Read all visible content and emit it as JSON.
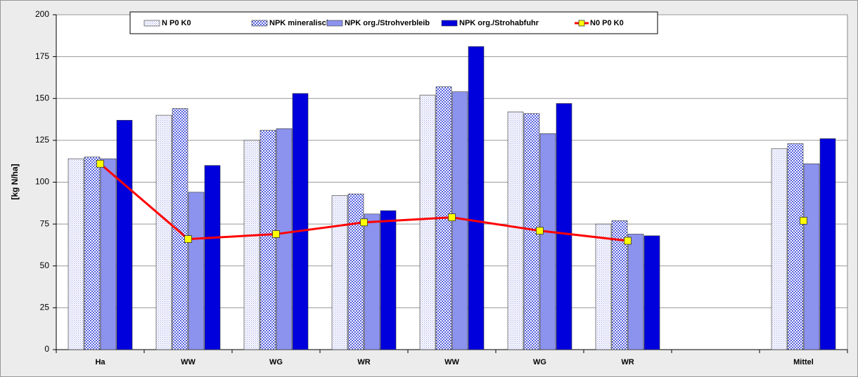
{
  "chart_data": {
    "type": "bar",
    "y_label": "[kg N/ha]",
    "categories": [
      "Ha",
      "WW",
      "WG",
      "WR",
      "WW",
      "WG",
      "WR",
      null,
      "Mittel"
    ],
    "series": [
      {
        "name": "N P0 K0",
        "color": "#9aa0e8",
        "pattern": "dots",
        "values": [
          114,
          140,
          125,
          92,
          152,
          142,
          75,
          null,
          120
        ]
      },
      {
        "name": "NPK mineralisch",
        "color": "#5560e0",
        "pattern": "checker",
        "values": [
          115,
          144,
          131,
          93,
          157,
          141,
          77,
          null,
          123
        ]
      },
      {
        "name": "NPK org./Strohverbleib",
        "color": "#8c93ee",
        "values": [
          114,
          94,
          132,
          81,
          154,
          129,
          69,
          null,
          111
        ]
      },
      {
        "name": "NPK org./Strohabfuhr",
        "color": "#0000dd",
        "values": [
          137,
          110,
          153,
          83,
          181,
          147,
          68,
          null,
          126
        ]
      },
      {
        "name": "N0 P0 K0",
        "type": "line",
        "color": "#ff0000",
        "marker_color": "#ffff00",
        "values": [
          111,
          66,
          69,
          76,
          79,
          71,
          65,
          null,
          77
        ]
      }
    ],
    "ylim": [
      0,
      200
    ],
    "yticks": [
      0,
      25,
      50,
      75,
      100,
      125,
      150,
      175,
      200
    ],
    "grid": true,
    "legend": "top"
  }
}
